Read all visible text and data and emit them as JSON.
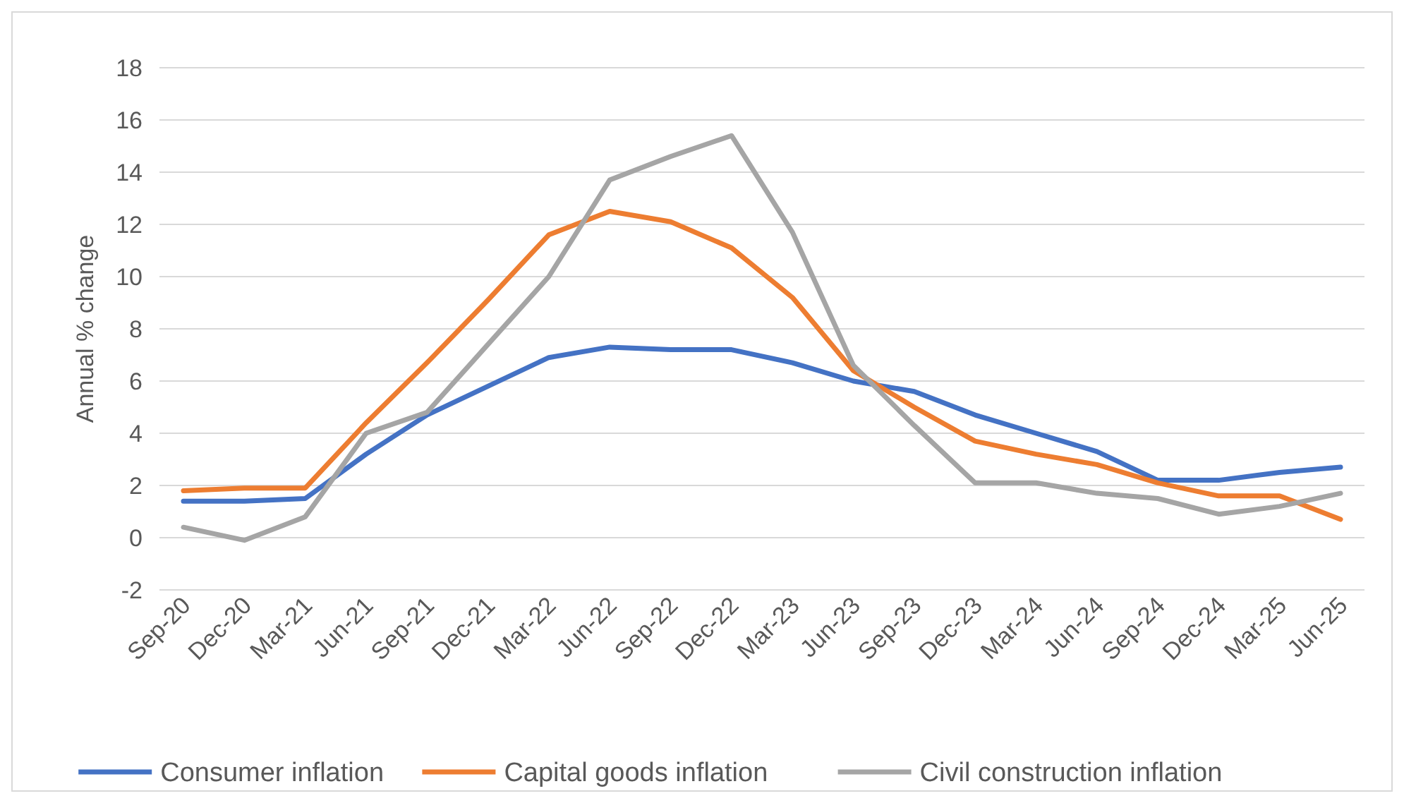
{
  "chart_data": {
    "type": "line",
    "ylabel": "Annual % change",
    "categories": [
      "Sep-20",
      "Dec-20",
      "Mar-21",
      "Jun-21",
      "Sep-21",
      "Dec-21",
      "Mar-22",
      "Jun-22",
      "Sep-22",
      "Dec-22",
      "Mar-23",
      "Jun-23",
      "Sep-23",
      "Dec-23",
      "Mar-24",
      "Jun-24",
      "Sep-24",
      "Dec-24",
      "Mar-25",
      "Jun-25"
    ],
    "series": [
      {
        "name": "Consumer inflation",
        "color": "#4472c4",
        "values": [
          1.4,
          1.4,
          1.5,
          3.2,
          4.7,
          5.8,
          6.9,
          7.3,
          7.2,
          7.2,
          6.7,
          6.0,
          5.6,
          4.7,
          4.0,
          3.3,
          2.2,
          2.2,
          2.5,
          2.7
        ]
      },
      {
        "name": "Capital goods inflation",
        "color": "#ed7d31",
        "values": [
          1.8,
          1.9,
          1.9,
          4.4,
          6.7,
          9.1,
          11.6,
          12.5,
          12.1,
          11.1,
          9.2,
          6.4,
          5.0,
          3.7,
          3.2,
          2.8,
          2.1,
          1.6,
          1.6,
          0.7
        ]
      },
      {
        "name": "Civil construction inflation",
        "color": "#a5a5a5",
        "values": [
          0.4,
          -0.1,
          0.8,
          4.0,
          4.8,
          7.4,
          10.0,
          13.7,
          14.6,
          15.4,
          11.7,
          6.6,
          4.3,
          2.1,
          2.1,
          1.7,
          1.5,
          0.9,
          1.2,
          1.7
        ]
      }
    ],
    "ylim": [
      -2,
      18
    ],
    "yticks": [
      -2,
      0,
      2,
      4,
      6,
      8,
      10,
      12,
      14,
      16,
      18
    ],
    "grid": "y",
    "legend": "bottom",
    "marker": "none",
    "line_style": "solid"
  }
}
